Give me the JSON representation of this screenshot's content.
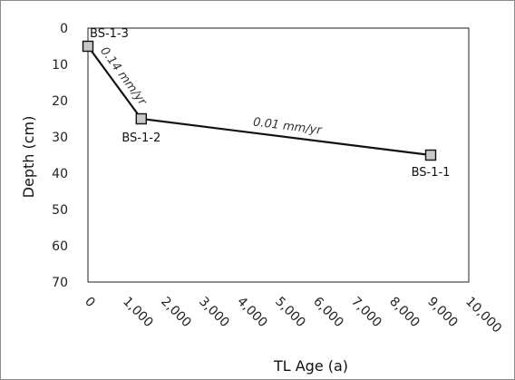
{
  "chart_data": {
    "type": "line",
    "title": "",
    "xlabel": "TL Age (a)",
    "ylabel": "Depth (cm)",
    "xlim": [
      0,
      10000
    ],
    "ylim": [
      0,
      70
    ],
    "y_inverted": true,
    "grid": false,
    "x_ticks": [
      0,
      1000,
      2000,
      3000,
      4000,
      5000,
      6000,
      7000,
      8000,
      9000,
      10000
    ],
    "x_tick_labels": [
      "0",
      "1,000",
      "2,000",
      "3,000",
      "4,000",
      "5,000",
      "6,000",
      "7,000",
      "8,000",
      "9,000",
      "10,000"
    ],
    "y_ticks": [
      0,
      10,
      20,
      30,
      40,
      50,
      60,
      70
    ],
    "y_tick_labels": [
      "0",
      "10",
      "20",
      "30",
      "40",
      "50",
      "60",
      "70"
    ],
    "points": [
      {
        "label": "BS-1-3",
        "x": 0,
        "y": 5
      },
      {
        "label": "BS-1-2",
        "x": 1400,
        "y": 25
      },
      {
        "label": "BS-1-1",
        "x": 9000,
        "y": 35
      }
    ],
    "segment_labels": [
      "0.14 mm/yr",
      "0.01 mm/yr"
    ],
    "marker": "square",
    "marker_fill": "#c8c8c8",
    "line_color": "#111111"
  }
}
